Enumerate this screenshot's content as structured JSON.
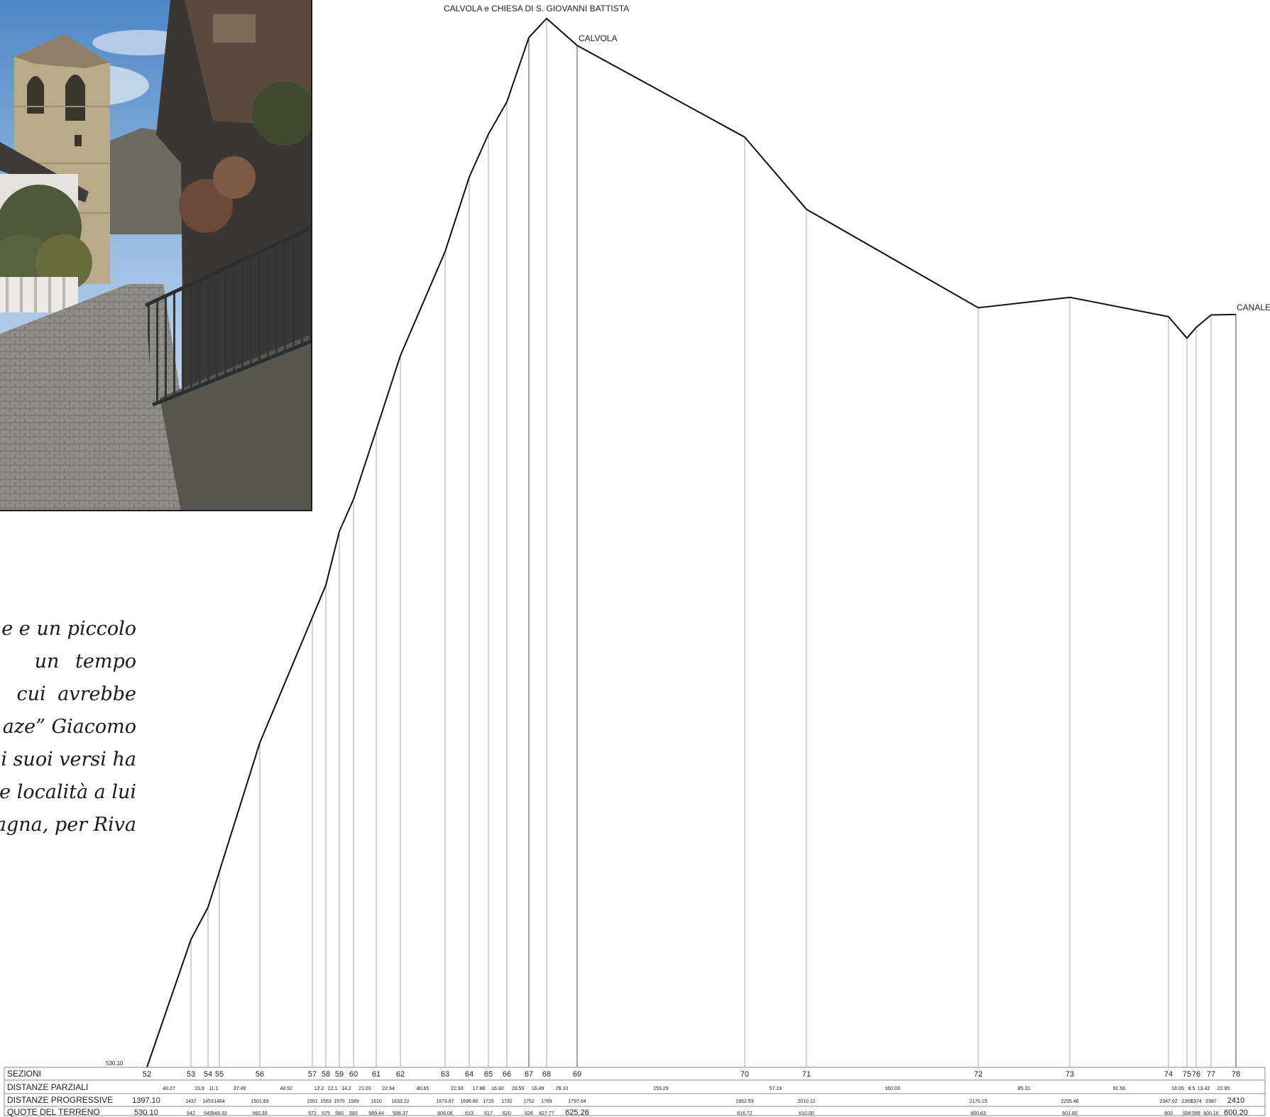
{
  "photo": {
    "description_icon": "church-bell-tower-photo",
    "colors": {
      "sky": "#7aa6d6",
      "stone": "#b8a888",
      "pavement": "#8a8a84",
      "fence": "#2d3236"
    }
  },
  "text_fragment": {
    "lines": [
      "e e un piccolo",
      "un     tempo",
      "cui   avrebbe",
      "aze” Giacomo",
      "i suoi versi ha",
      "te località a lui",
      "agna, per Riva"
    ]
  },
  "chart_data": {
    "type": "line",
    "title": "",
    "place_labels": [
      {
        "text": "CALVOLA e CHIESA DI S. GIOVANNI BATTISTA",
        "at_section": "68"
      },
      {
        "text": "CALVOLA",
        "at_section": "69"
      },
      {
        "text": "CANALE",
        "at_section": "78"
      }
    ],
    "start_marker": "530.10",
    "table_headers": [
      "SEZIONI",
      "DISTANZE PARZIALI",
      "DISTANZE PROGRESSIVE",
      "QUOTE DEL TERRENO"
    ],
    "sections": [
      {
        "id": "52",
        "prog": 1397.1,
        "prog_label": "1397.10",
        "quota": 530.1,
        "quota_label": "530.10"
      },
      {
        "id": "53",
        "prog": 1437,
        "prog_label": "1437",
        "quota": 542,
        "quota_label": "542"
      },
      {
        "id": "54",
        "prog": 1453,
        "prog_label": "1453",
        "quota": 545,
        "quota_label": "545"
      },
      {
        "id": "55",
        "prog": 1464,
        "prog_label": "1464",
        "quota": 548.33,
        "quota_label": "548.33"
      },
      {
        "id": "56",
        "prog": 1501.83,
        "prog_label": "1501.83",
        "quota": 560.33,
        "quota_label": "560.33"
      },
      {
        "id": "57",
        "prog": 1551,
        "prog_label": "1551",
        "quota": 572,
        "quota_label": "572"
      },
      {
        "id": "58",
        "prog": 1563,
        "prog_label": "1563",
        "quota": 575,
        "quota_label": "575"
      },
      {
        "id": "59",
        "prog": 1575,
        "prog_label": "1575",
        "quota": 580,
        "quota_label": "580"
      },
      {
        "id": "60",
        "prog": 1589,
        "prog_label": "1589",
        "quota": 583,
        "quota_label": "583"
      },
      {
        "id": "61",
        "prog": 1610,
        "prog_label": "1610",
        "quota": 589.44,
        "quota_label": "589.44"
      },
      {
        "id": "62",
        "prog": 1633.22,
        "prog_label": "1633.22",
        "quota": 596.37,
        "quota_label": "596.37"
      },
      {
        "id": "63",
        "prog": 1673.87,
        "prog_label": "1673.87",
        "quota": 606.06,
        "quota_label": "606.06"
      },
      {
        "id": "64",
        "prog": 1696.8,
        "prog_label": "1696.80",
        "quota": 613,
        "quota_label": "613"
      },
      {
        "id": "65",
        "prog": 1715,
        "prog_label": "1715",
        "quota": 617,
        "quota_label": "617"
      },
      {
        "id": "66",
        "prog": 1732,
        "prog_label": "1732",
        "quota": 620,
        "quota_label": "620"
      },
      {
        "id": "67",
        "prog": 1752,
        "prog_label": "1752",
        "quota": 626,
        "quota_label": "626"
      },
      {
        "id": "68",
        "prog": 1769,
        "prog_label": "1769",
        "quota": 627.77,
        "quota_label": "627.77"
      },
      {
        "id": "69",
        "prog": 1797.64,
        "prog_label": "1797.64",
        "quota": 625.26,
        "quota_label": "625.26"
      },
      {
        "id": "70",
        "prog": 1952.93,
        "prog_label": "1952.93",
        "quota": 616.72,
        "quota_label": "616.72"
      },
      {
        "id": "71",
        "prog": 2010.12,
        "prog_label": "2010.12",
        "quota": 610.0,
        "quota_label": "610.00"
      },
      {
        "id": "72",
        "prog": 2170.15,
        "prog_label": "2170.15",
        "quota": 600.83,
        "quota_label": "600.83"
      },
      {
        "id": "73",
        "prog": 2255.46,
        "prog_label": "2255.46",
        "quota": 601.8,
        "quota_label": "601.80"
      },
      {
        "id": "74",
        "prog": 2347.02,
        "prog_label": "2347.02",
        "quota": 600,
        "quota_label": "600"
      },
      {
        "id": "75",
        "prog": 2365,
        "prog_label": "2365",
        "quota": 598,
        "quota_label": "598"
      },
      {
        "id": "76",
        "prog": 2374,
        "prog_label": "2374",
        "quota": 599,
        "quota_label": "599"
      },
      {
        "id": "77",
        "prog": 2387,
        "prog_label": "2387",
        "quota": 600.16,
        "quota_label": "600.16"
      },
      {
        "id": "78",
        "prog": 2410,
        "prog_label": "2410",
        "quota": 600.2,
        "quota_label": "600.20"
      }
    ],
    "partial_distances": [
      "40.27",
      "15.9",
      "11.1",
      "37.49",
      "48.92",
      "12.2",
      "12.1",
      "14.2",
      "21.03",
      "22.94",
      "40.65",
      "22.93",
      "17.88",
      "16.82",
      "20.55",
      "16.49",
      "29.10",
      "155.29",
      "57.19",
      "160.03",
      "85.31",
      "91.56",
      "18.05",
      "8.5",
      "13.42",
      "22.95"
    ],
    "x_range": [
      1397.1,
      2410
    ],
    "y_range": [
      530.1,
      627.77
    ]
  }
}
